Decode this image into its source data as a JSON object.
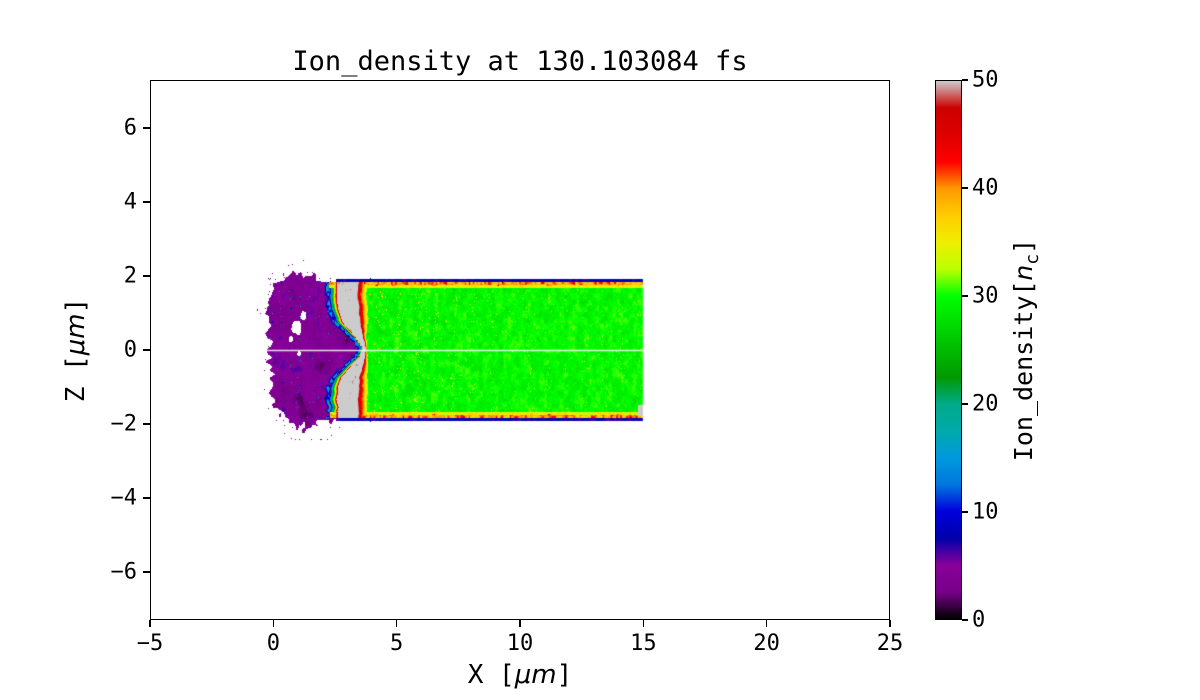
{
  "chart_data": {
    "type": "heatmap",
    "title": "Ion_density at 130.103084 fs",
    "xlabel": "X [μm]",
    "ylabel": "Z [μm]",
    "xlim": [
      -5,
      25
    ],
    "ylim": [
      -7.3,
      7.3
    ],
    "xticks": [
      -5,
      0,
      5,
      10,
      15,
      20,
      25
    ],
    "yticks": [
      -6,
      -4,
      -2,
      0,
      2,
      4,
      6
    ],
    "background_color": "#ffffff",
    "colorbar": {
      "label": "Ion_density[nc]",
      "ticks": [
        0,
        10,
        20,
        30,
        40,
        50
      ],
      "vmin": 0,
      "vmax": 50,
      "colormap": "nipy_spectral"
    },
    "colormap_stops": [
      [
        0.0,
        "#000000"
      ],
      [
        0.05,
        "#770088"
      ],
      [
        0.1,
        "#880099"
      ],
      [
        0.15,
        "#0000AA"
      ],
      [
        0.2,
        "#0000DD"
      ],
      [
        0.25,
        "#0077DD"
      ],
      [
        0.3,
        "#0099DD"
      ],
      [
        0.35,
        "#00AAAA"
      ],
      [
        0.4,
        "#00AA88"
      ],
      [
        0.45,
        "#009900"
      ],
      [
        0.5,
        "#00BB00"
      ],
      [
        0.55,
        "#00DD00"
      ],
      [
        0.6,
        "#00FF00"
      ],
      [
        0.65,
        "#BBFF00"
      ],
      [
        0.7,
        "#EEEE00"
      ],
      [
        0.75,
        "#FFCC00"
      ],
      [
        0.8,
        "#FF9900"
      ],
      [
        0.85,
        "#FF0000"
      ],
      [
        0.9,
        "#DD0000"
      ],
      [
        0.95,
        "#CC0000"
      ],
      [
        1.0,
        "#CCCCCC"
      ]
    ],
    "gridlines": {
      "x": [
        15
      ],
      "z": [
        0
      ],
      "color": "#ffffff"
    },
    "features": {
      "time_fs": 130.103084,
      "slab": {
        "x_range": [
          0.5,
          15
        ],
        "z_range": [
          -1.84,
          1.84
        ],
        "density": 30
      },
      "compressed_front": {
        "x_range": [
          2.3,
          3.8
        ],
        "peak_density": 55
      },
      "cavity": {
        "x_range": [
          -0.3,
          3.4
        ],
        "z_range": [
          -2.5,
          2.5
        ],
        "density": 3,
        "holes": [
          [
            0.95,
            0.62,
            0.2
          ],
          [
            1.22,
            0.92,
            0.12
          ],
          [
            0.72,
            0.3,
            0.09
          ],
          [
            1.05,
            -0.1,
            0.07
          ]
        ]
      }
    }
  },
  "labels": {
    "xticks": [
      "−5",
      "0",
      "5",
      "10",
      "15",
      "20",
      "25"
    ],
    "yticks": [
      "−6",
      "−4",
      "−2",
      "0",
      "2",
      "4",
      "6"
    ],
    "cbticks": [
      "0",
      "10",
      "20",
      "30",
      "40",
      "50"
    ]
  },
  "axis_labels": {
    "x_prefix": "X [",
    "x_unit": "μm",
    "x_suffix": "]",
    "y_prefix": "Z [",
    "y_unit": "μm",
    "y_suffix": "]",
    "cb_prefix": "Ion_density[",
    "cb_var": "n",
    "cb_sub": "c",
    "cb_suffix": "]"
  }
}
